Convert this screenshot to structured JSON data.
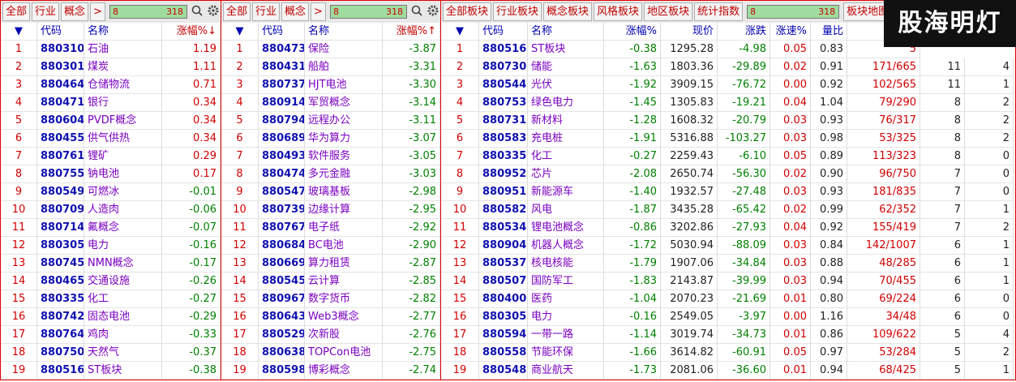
{
  "panels": [
    {
      "tabs": [
        "全部",
        "行业",
        "概念",
        ">"
      ],
      "search": {
        "value": "8",
        "count": "318"
      },
      "headers": [
        "▼",
        "代码",
        "名称",
        "涨幅%↓"
      ],
      "rows": [
        [
          "1",
          "880310",
          "石油",
          "1.19"
        ],
        [
          "2",
          "880301",
          "煤炭",
          "1.11"
        ],
        [
          "3",
          "880464",
          "仓储物流",
          "0.71"
        ],
        [
          "4",
          "880471",
          "银行",
          "0.34"
        ],
        [
          "5",
          "880604",
          "PVDF概念",
          "0.34"
        ],
        [
          "6",
          "880455",
          "供气供热",
          "0.34"
        ],
        [
          "7",
          "880761",
          "锂矿",
          "0.29"
        ],
        [
          "8",
          "880755",
          "钠电池",
          "0.17"
        ],
        [
          "9",
          "880549",
          "可燃冰",
          "-0.01"
        ],
        [
          "10",
          "880709",
          "人造肉",
          "-0.06"
        ],
        [
          "11",
          "880714",
          "氟概念",
          "-0.07"
        ],
        [
          "12",
          "880305",
          "电力",
          "-0.16"
        ],
        [
          "13",
          "880745",
          "NMN概念",
          "-0.17"
        ],
        [
          "14",
          "880465",
          "交通设施",
          "-0.26"
        ],
        [
          "15",
          "880335",
          "化工",
          "-0.27"
        ],
        [
          "16",
          "880742",
          "固态电池",
          "-0.29"
        ],
        [
          "17",
          "880764",
          "鸡肉",
          "-0.33"
        ],
        [
          "18",
          "880750",
          "天然气",
          "-0.37"
        ],
        [
          "19",
          "880516",
          "ST板块",
          "-0.38"
        ]
      ]
    },
    {
      "tabs": [
        "全部",
        "行业",
        "概念",
        ">"
      ],
      "search": {
        "value": "8",
        "count": "318"
      },
      "headers": [
        "▼",
        "代码",
        "名称",
        "涨幅%↑"
      ],
      "rows": [
        [
          "1",
          "880473",
          "保险",
          "-3.87"
        ],
        [
          "2",
          "880431",
          "船舶",
          "-3.31"
        ],
        [
          "3",
          "880737",
          "HJT电池",
          "-3.30"
        ],
        [
          "4",
          "880914",
          "军贸概念",
          "-3.14"
        ],
        [
          "5",
          "880794",
          "远程办公",
          "-3.11"
        ],
        [
          "6",
          "880689",
          "华为算力",
          "-3.07"
        ],
        [
          "7",
          "880493",
          "软件服务",
          "-3.05"
        ],
        [
          "8",
          "880474",
          "多元金融",
          "-3.03"
        ],
        [
          "9",
          "880547",
          "玻璃基板",
          "-2.98"
        ],
        [
          "10",
          "880739",
          "边缘计算",
          "-2.95"
        ],
        [
          "11",
          "880767",
          "电子纸",
          "-2.92"
        ],
        [
          "12",
          "880684",
          "BC电池",
          "-2.90"
        ],
        [
          "13",
          "880669",
          "算力租赁",
          "-2.87"
        ],
        [
          "14",
          "880545",
          "云计算",
          "-2.85"
        ],
        [
          "15",
          "880967",
          "数字货币",
          "-2.82"
        ],
        [
          "16",
          "880643",
          "Web3概念",
          "-2.77"
        ],
        [
          "17",
          "880529",
          "次新股",
          "-2.76"
        ],
        [
          "18",
          "880638",
          "TOPCon电池",
          "-2.75"
        ],
        [
          "19",
          "880598",
          "博彩概念",
          "-2.74"
        ]
      ]
    },
    {
      "tabs": [
        "全部板块",
        "行业板块",
        "概念板块",
        "风格板块",
        "地区板块",
        "统计指数"
      ],
      "search": {
        "value": "8",
        "count": "318"
      },
      "tabs_after": [
        "板块地图"
      ],
      "headers": [
        "▼",
        "代码",
        "名称",
        "涨幅%",
        "现价",
        "涨跌",
        "涨速%",
        "量比",
        "涨"
      ],
      "rows": [
        [
          "1",
          "880516",
          "ST板块",
          "-0.38",
          "1295.28",
          "-4.98",
          "0.05",
          "0.83",
          "5",
          null,
          null
        ],
        [
          "2",
          "880730",
          "储能",
          "-1.63",
          "1803.36",
          "-29.89",
          "0.02",
          "0.91",
          "171/665",
          "11",
          "4"
        ],
        [
          "3",
          "880544",
          "光伏",
          "-1.92",
          "3909.15",
          "-76.72",
          "0.00",
          "0.92",
          "102/565",
          "11",
          "1"
        ],
        [
          "4",
          "880753",
          "绿色电力",
          "-1.45",
          "1305.83",
          "-19.21",
          "0.04",
          "1.04",
          "79/290",
          "8",
          "2"
        ],
        [
          "5",
          "880731",
          "新材料",
          "-1.28",
          "1608.32",
          "-20.79",
          "0.03",
          "0.93",
          "76/317",
          "8",
          "2"
        ],
        [
          "6",
          "880583",
          "充电桩",
          "-1.91",
          "5316.88",
          "-103.27",
          "0.03",
          "0.98",
          "53/325",
          "8",
          "2"
        ],
        [
          "7",
          "880335",
          "化工",
          "-0.27",
          "2259.43",
          "-6.10",
          "0.05",
          "0.89",
          "113/323",
          "8",
          "0"
        ],
        [
          "8",
          "880952",
          "芯片",
          "-2.08",
          "2650.74",
          "-56.30",
          "0.02",
          "0.90",
          "96/750",
          "7",
          "0"
        ],
        [
          "9",
          "880951",
          "新能源车",
          "-1.40",
          "1932.57",
          "-27.48",
          "0.03",
          "0.93",
          "181/835",
          "7",
          "0"
        ],
        [
          "10",
          "880582",
          "风电",
          "-1.87",
          "3435.28",
          "-65.42",
          "0.02",
          "0.99",
          "62/352",
          "7",
          "1"
        ],
        [
          "11",
          "880534",
          "锂电池概念",
          "-0.86",
          "3202.86",
          "-27.93",
          "0.04",
          "0.92",
          "155/419",
          "7",
          "2"
        ],
        [
          "12",
          "880904",
          "机器人概念",
          "-1.72",
          "5030.94",
          "-88.09",
          "0.03",
          "0.84",
          "142/1007",
          "6",
          "1"
        ],
        [
          "13",
          "880537",
          "核电核能",
          "-1.79",
          "1907.06",
          "-34.84",
          "0.03",
          "0.88",
          "48/285",
          "6",
          "1"
        ],
        [
          "14",
          "880507",
          "国防军工",
          "-1.83",
          "2143.87",
          "-39.99",
          "0.03",
          "0.94",
          "70/455",
          "6",
          "1"
        ],
        [
          "15",
          "880400",
          "医药",
          "-1.04",
          "2070.23",
          "-21.69",
          "0.01",
          "0.80",
          "69/224",
          "6",
          "0"
        ],
        [
          "16",
          "880305",
          "电力",
          "-0.16",
          "2549.05",
          "-3.97",
          "0.00",
          "1.16",
          "34/48",
          "6",
          "0"
        ],
        [
          "17",
          "880594",
          "一带一路",
          "-1.14",
          "3019.74",
          "-34.73",
          "0.01",
          "0.86",
          "109/622",
          "5",
          "4"
        ],
        [
          "18",
          "880558",
          "节能环保",
          "-1.66",
          "3614.82",
          "-60.91",
          "0.05",
          "0.97",
          "53/284",
          "5",
          "2"
        ],
        [
          "19",
          "880548",
          "商业航天",
          "-1.73",
          "2081.06",
          "-36.60",
          "0.01",
          "0.94",
          "68/425",
          "5",
          "1"
        ]
      ]
    }
  ],
  "watermark": "股海明灯"
}
